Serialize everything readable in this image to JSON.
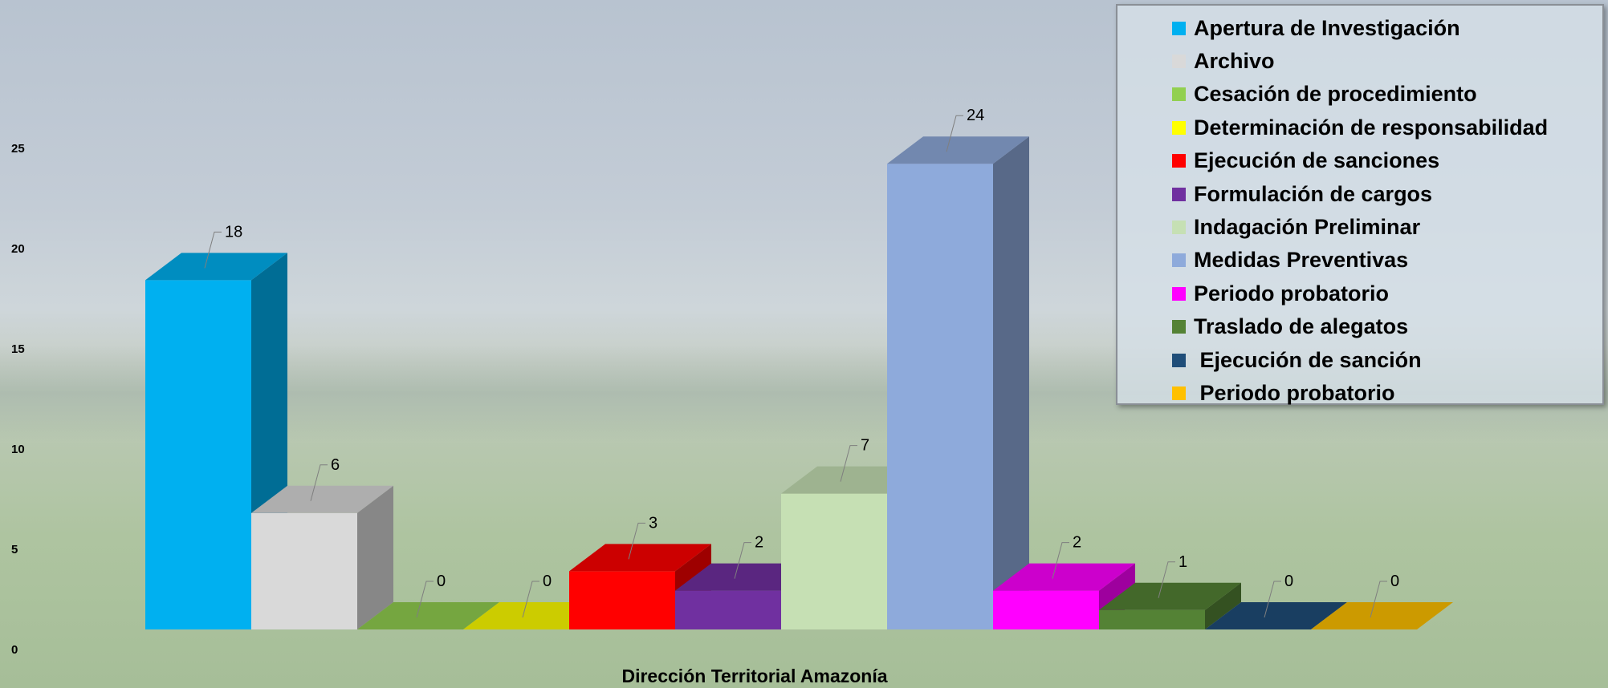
{
  "chart_data": {
    "type": "bar",
    "xlabel": "Dirección Territorial Amazonía",
    "ylim": [
      0,
      25
    ],
    "yticks": [
      0,
      5,
      10,
      15,
      20,
      25
    ],
    "legend_position": "top-right",
    "series": [
      {
        "name": "Apertura de Investigación",
        "value": 18,
        "color": "#00b0f0"
      },
      {
        "name": "Archivo",
        "value": 6,
        "color": "#d9d9d9"
      },
      {
        "name": "Cesación de procedimiento",
        "value": 0,
        "color": "#92d050"
      },
      {
        "name": "Determinación de responsabilidad",
        "value": 0,
        "color": "#ffff00"
      },
      {
        "name": "Ejecución de sanciones",
        "value": 3,
        "color": "#ff0000"
      },
      {
        "name": "Formulación de cargos",
        "value": 2,
        "color": "#7030a0"
      },
      {
        "name": "Indagación Preliminar",
        "value": 7,
        "color": "#c6e0b4"
      },
      {
        "name": "Medidas Preventivas",
        "value": 24,
        "color": "#8eaadb"
      },
      {
        "name": "Periodo probatorio",
        "value": 2,
        "color": "#ff00ff"
      },
      {
        "name": "Traslado de alegatos",
        "value": 1,
        "color": "#548235"
      },
      {
        "name": " Ejecución de sanción",
        "value": 0,
        "color": "#1f4e79"
      },
      {
        "name": " Periodo probatorio",
        "value": 0,
        "color": "#ffc000"
      }
    ]
  }
}
